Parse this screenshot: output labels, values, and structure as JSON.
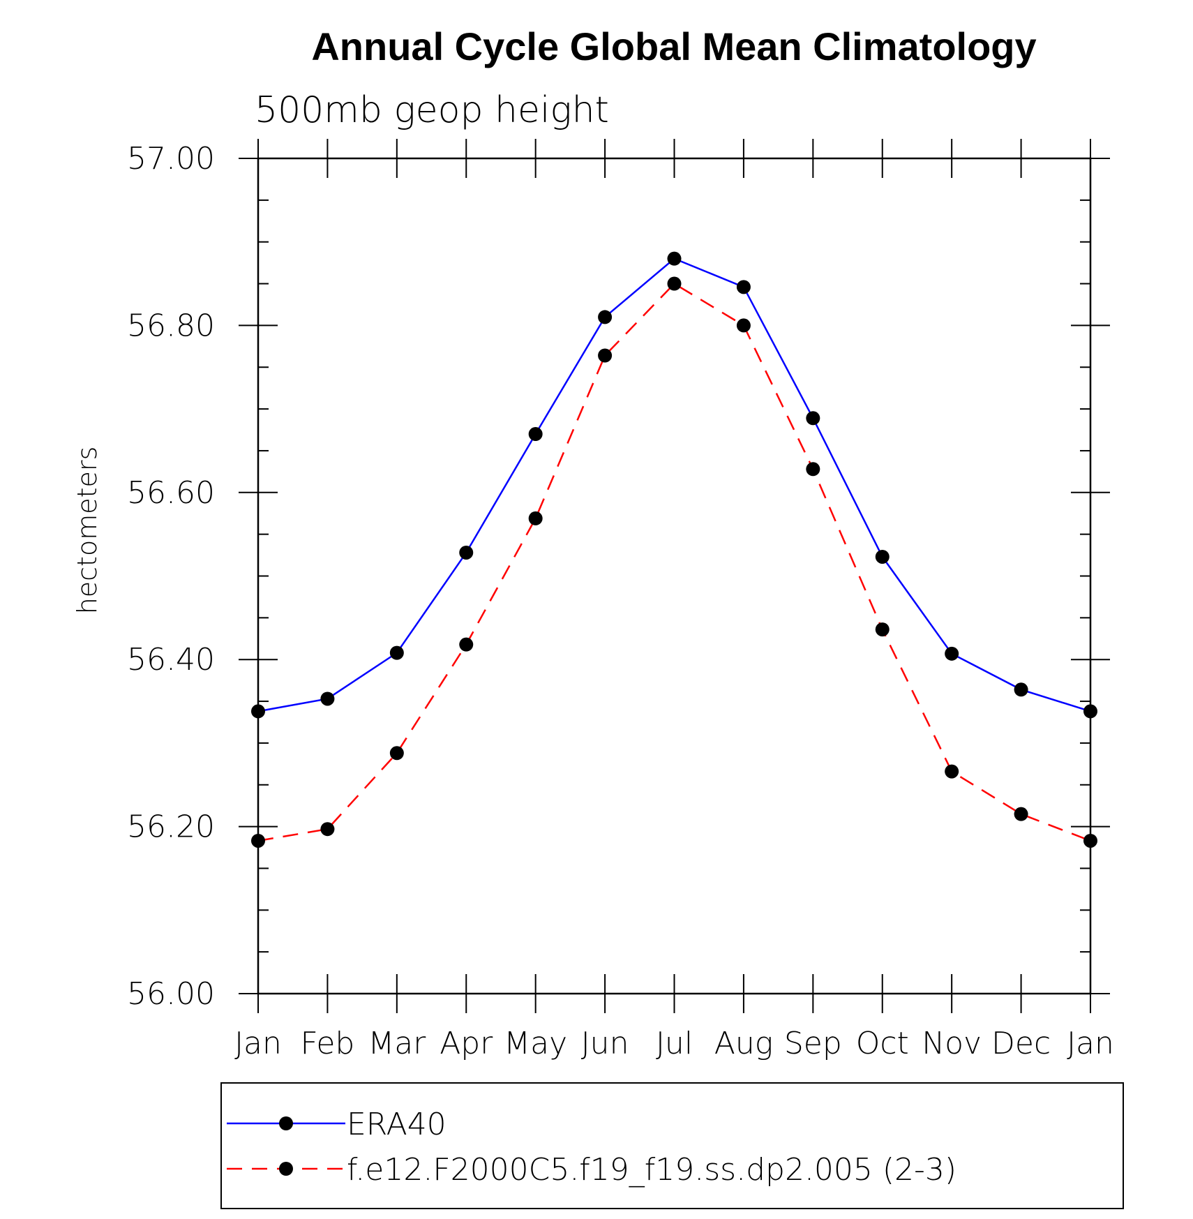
{
  "chart_data": {
    "type": "line",
    "title": "Annual Cycle Global Mean Climatology",
    "subtitle": "500mb geop height",
    "xlabel": "",
    "ylabel": "hectometers",
    "categories": [
      "Jan",
      "Feb",
      "Mar",
      "Apr",
      "May",
      "Jun",
      "Jul",
      "Aug",
      "Sep",
      "Oct",
      "Nov",
      "Dec",
      "Jan"
    ],
    "ylim": [
      56.0,
      57.0
    ],
    "yticks": [
      "56.00",
      "56.20",
      "56.40",
      "56.60",
      "56.80",
      "57.00"
    ],
    "ytick_values": [
      56.0,
      56.2,
      56.4,
      56.6,
      56.8,
      57.0
    ],
    "grid": false,
    "legend_position": "bottom",
    "series": [
      {
        "name": "ERA40",
        "color": "#0000ff",
        "line_style": "solid",
        "marker": "filled-circle",
        "values": [
          56.338,
          56.353,
          56.408,
          56.528,
          56.67,
          56.81,
          56.88,
          56.846,
          56.689,
          56.523,
          56.407,
          56.364,
          56.338
        ]
      },
      {
        "name": "f.e12.F2000C5.f19_f19.ss.dp2.005 (2-3)",
        "color": "#ff0000",
        "line_style": "dashed",
        "marker": "filled-circle",
        "values": [
          56.183,
          56.197,
          56.288,
          56.418,
          56.569,
          56.764,
          56.85,
          56.8,
          56.628,
          56.436,
          56.266,
          56.215,
          56.183
        ]
      }
    ]
  }
}
